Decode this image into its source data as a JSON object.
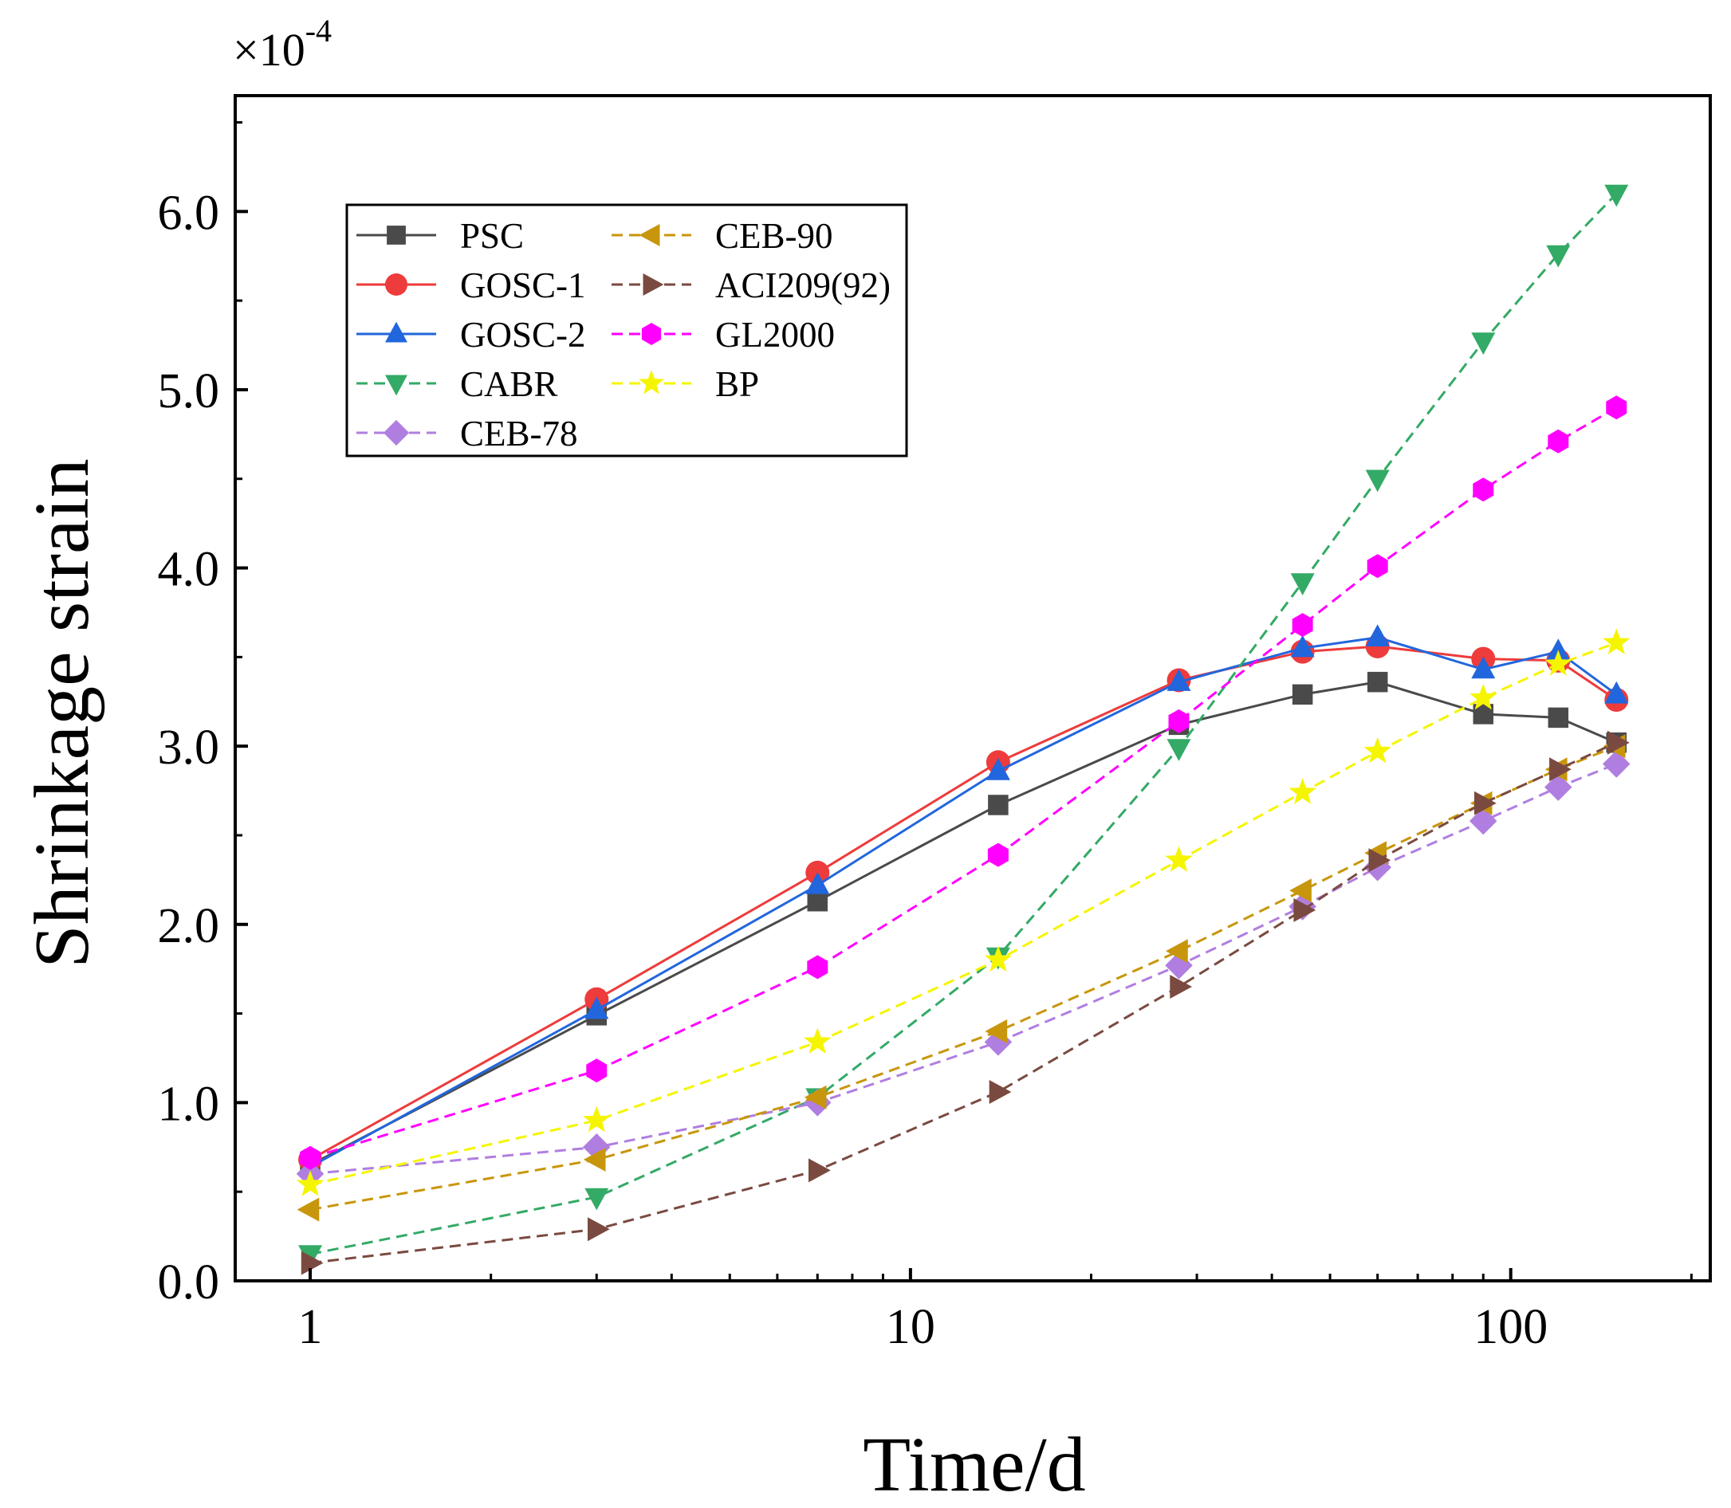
{
  "chart_data": {
    "type": "line",
    "title": "",
    "xlabel": "Time/d",
    "ylabel": "Shrinkage strain",
    "y_multiplier": "×10",
    "y_multiplier_exponent": "-4",
    "x_scale": "log",
    "xlim": [
      0.75,
      215
    ],
    "ylim": [
      0,
      6.65
    ],
    "x_ticks": [
      1,
      10,
      100
    ],
    "x_tick_labels": [
      "1",
      "10",
      "100"
    ],
    "y_ticks": [
      0,
      1,
      2,
      3,
      4,
      5,
      6
    ],
    "y_tick_labels": [
      "0.0",
      "1.0",
      "2.0",
      "3.0",
      "4.0",
      "5.0",
      "6.0"
    ],
    "grid": false,
    "legend_position": "top-left",
    "x": [
      1,
      3,
      7,
      14,
      28,
      45,
      60,
      90,
      120,
      150
    ],
    "series": [
      {
        "name": "PSC",
        "color": "#4a4a4a",
        "marker": "square",
        "dashed": false,
        "values": [
          0.65,
          1.49,
          2.13,
          2.67,
          3.12,
          3.29,
          3.36,
          3.18,
          3.16,
          3.02
        ]
      },
      {
        "name": "GOSC-1",
        "color": "#ee3b3b",
        "marker": "circle",
        "dashed": false,
        "values": [
          0.68,
          1.58,
          2.29,
          2.91,
          3.37,
          3.53,
          3.56,
          3.49,
          3.48,
          3.26
        ]
      },
      {
        "name": "GOSC-2",
        "color": "#2266dd",
        "marker": "triangle-up",
        "dashed": false,
        "values": [
          0.64,
          1.52,
          2.22,
          2.86,
          3.36,
          3.55,
          3.61,
          3.43,
          3.53,
          3.29
        ]
      },
      {
        "name": "CABR",
        "color": "#33aa66",
        "marker": "triangle-down",
        "dashed": true,
        "values": [
          0.15,
          0.47,
          1.03,
          1.82,
          2.99,
          3.92,
          4.5,
          5.27,
          5.76,
          6.1
        ]
      },
      {
        "name": "CEB-78",
        "color": "#b07ee0",
        "marker": "diamond",
        "dashed": true,
        "values": [
          0.6,
          0.75,
          1.0,
          1.34,
          1.77,
          2.1,
          2.32,
          2.58,
          2.77,
          2.9
        ]
      },
      {
        "name": "CEB-90",
        "color": "#c8960c",
        "marker": "triangle-left",
        "dashed": true,
        "values": [
          0.4,
          0.68,
          1.03,
          1.4,
          1.85,
          2.19,
          2.4,
          2.68,
          2.87,
          3.0
        ]
      },
      {
        "name": "ACI209(92)",
        "color": "#7a4a40",
        "marker": "triangle-right",
        "dashed": true,
        "values": [
          0.1,
          0.29,
          0.62,
          1.06,
          1.65,
          2.08,
          2.36,
          2.68,
          2.87,
          3.02
        ]
      },
      {
        "name": "GL2000",
        "color": "#ff00ff",
        "marker": "hexagon",
        "dashed": true,
        "values": [
          0.69,
          1.18,
          1.76,
          2.39,
          3.14,
          3.68,
          4.01,
          4.44,
          4.71,
          4.9
        ]
      },
      {
        "name": "BP",
        "color": "#f5f500",
        "marker": "star",
        "dashed": true,
        "values": [
          0.54,
          0.9,
          1.34,
          1.8,
          2.36,
          2.74,
          2.97,
          3.27,
          3.46,
          3.58
        ]
      }
    ]
  }
}
